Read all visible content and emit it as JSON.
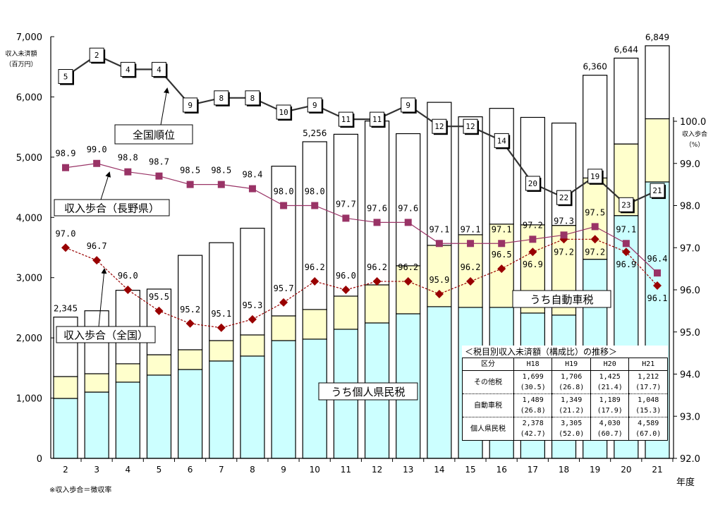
{
  "chart_data": {
    "type": "bar+line",
    "categories": [
      "2",
      "3",
      "4",
      "5",
      "6",
      "7",
      "8",
      "9",
      "10",
      "11",
      "12",
      "13",
      "14",
      "15",
      "16",
      "17",
      "18",
      "19",
      "20",
      "21"
    ],
    "xlabel": "年度",
    "ylabel_left": [
      "収入未済額",
      "（百万円）"
    ],
    "ylabel_right": [
      "収入歩合",
      "（%）"
    ],
    "ylim_left": [
      0,
      7000
    ],
    "yticks_left": [
      "0",
      "1,000",
      "2,000",
      "3,000",
      "4,000",
      "5,000",
      "6,000",
      "7,000"
    ],
    "ylim_right": [
      92.0,
      100.0
    ],
    "yticks_right": [
      "92.0",
      "93.0",
      "94.0",
      "95.0",
      "96.0",
      "97.0",
      "98.0",
      "99.0",
      "100.0"
    ],
    "bar_series": [
      {
        "name": "うち個人県民税",
        "color": "#ccffff",
        "values": [
          995,
          1100,
          1265,
          1382,
          1475,
          1616,
          1698,
          1955,
          1979,
          2143,
          2248,
          2400,
          2518,
          2506,
          2506,
          2412,
          2378,
          3305,
          4030,
          4589
        ]
      },
      {
        "name": "うち自動車税",
        "color": "#ffffcc",
        "values": [
          363,
          305,
          305,
          338,
          328,
          339,
          351,
          410,
          492,
          550,
          632,
          797,
          1018,
          1206,
          1382,
          1464,
          1489,
          1349,
          1189,
          1048
        ]
      },
      {
        "name": "その他税",
        "color": "#ffffff",
        "values": [
          987,
          1045,
          1220,
          1090,
          1567,
          1625,
          1771,
          2485,
          2785,
          2687,
          2720,
          2193,
          2374,
          1958,
          1922,
          1784,
          1699,
          1706,
          1425,
          1212
        ]
      }
    ],
    "total_labels": {
      "2": "2,345",
      "10": "5,256",
      "19": "6,360",
      "20": "6,644",
      "21": "6,849"
    },
    "line_series": [
      {
        "name": "全国順位",
        "color": "#333333",
        "axis": "rank",
        "values": [
          5,
          2,
          4,
          4,
          9,
          8,
          8,
          10,
          9,
          11,
          11,
          9,
          12,
          12,
          14,
          20,
          22,
          19,
          23,
          21
        ]
      },
      {
        "name": "収入歩合（長野県）",
        "color": "#993366",
        "axis": "right",
        "values": [
          98.9,
          99.0,
          98.8,
          98.7,
          98.5,
          98.5,
          98.4,
          98.0,
          98.0,
          97.7,
          97.6,
          97.6,
          97.1,
          97.1,
          97.1,
          97.2,
          97.3,
          97.5,
          97.1,
          96.4
        ]
      },
      {
        "name": "収入歩合（全国）",
        "color": "#990000",
        "axis": "right",
        "values": [
          97.0,
          96.7,
          96.0,
          95.5,
          95.2,
          95.1,
          95.3,
          95.7,
          96.2,
          96.0,
          96.2,
          96.2,
          95.9,
          96.2,
          96.5,
          96.9,
          97.2,
          97.2,
          96.9,
          96.1
        ]
      }
    ],
    "footnote": "※収入歩合＝徴収率",
    "grid": false
  },
  "table": {
    "title": "＜税目別収入未済額（構成比）の推移＞",
    "headers": [
      "区分",
      "H18",
      "H19",
      "H20",
      "H21"
    ],
    "rows": [
      {
        "label": "その他税",
        "values": [
          "1,699",
          "1,706",
          "1,425",
          "1,212"
        ],
        "shares": [
          "(30.5)",
          "(26.8)",
          "(21.4)",
          "(17.7)"
        ]
      },
      {
        "label": "自動車税",
        "values": [
          "1,489",
          "1,349",
          "1,189",
          "1,048"
        ],
        "shares": [
          "(26.8)",
          "(21.2)",
          "(17.9)",
          "(15.3)"
        ]
      },
      {
        "label": "個人県民税",
        "values": [
          "2,378",
          "3,305",
          "4,030",
          "4,589"
        ],
        "shares": [
          "(42.7)",
          "(52.0)",
          "(60.7)",
          "(67.0)"
        ]
      }
    ]
  }
}
